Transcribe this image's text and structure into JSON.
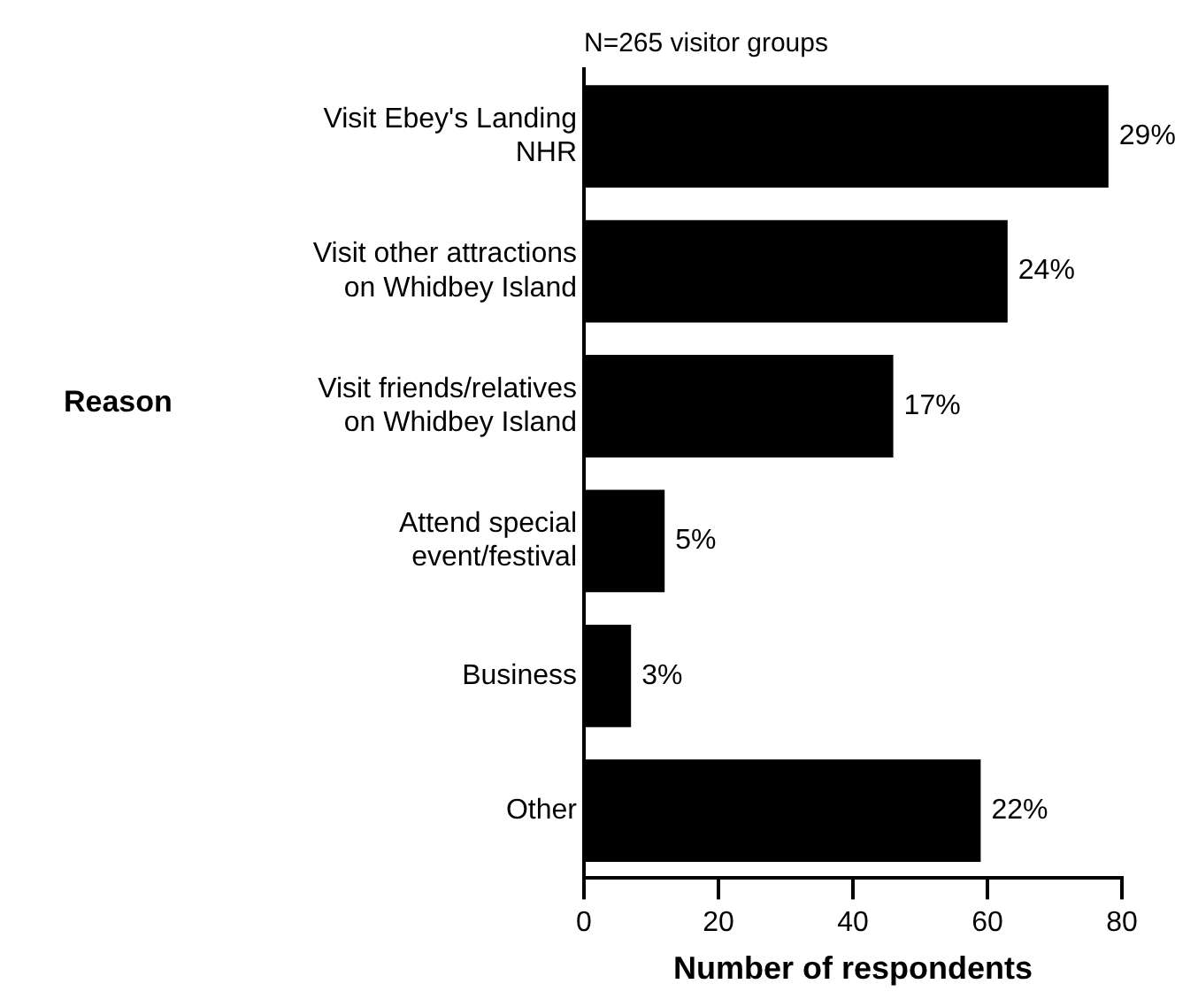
{
  "chart_data": {
    "type": "bar",
    "orientation": "horizontal",
    "title": "N=265 visitor groups",
    "xlabel": "Number of respondents",
    "ylabel": "Reason",
    "categories": [
      "Visit Ebey's Landing NHR",
      "Visit other attractions on Whidbey Island",
      "Visit friends/relatives on Whidbey Island",
      "Attend special event/festival",
      "Business",
      "Other"
    ],
    "values": [
      78,
      63,
      46,
      12,
      7,
      59
    ],
    "annotations": [
      {
        "text": "29%",
        "x": 78,
        "y": "Visit Ebey's Landing NHR"
      },
      {
        "text": "24%",
        "x": 63,
        "y": "Visit other attractions on Whidbey Island"
      },
      {
        "text": "17%",
        "x": 46,
        "y": "Visit friends/relatives on Whidbey Island"
      },
      {
        "text": "5%",
        "x": 12,
        "y": "Attend special event/festival"
      },
      {
        "text": "3%",
        "x": 7,
        "y": "Business"
      },
      {
        "text": "22%",
        "x": 59,
        "y": "Other"
      }
    ],
    "color": "#000000",
    "xlim": [
      0,
      80
    ],
    "xticks": [
      0,
      20,
      40,
      60,
      80
    ],
    "grid": false
  }
}
